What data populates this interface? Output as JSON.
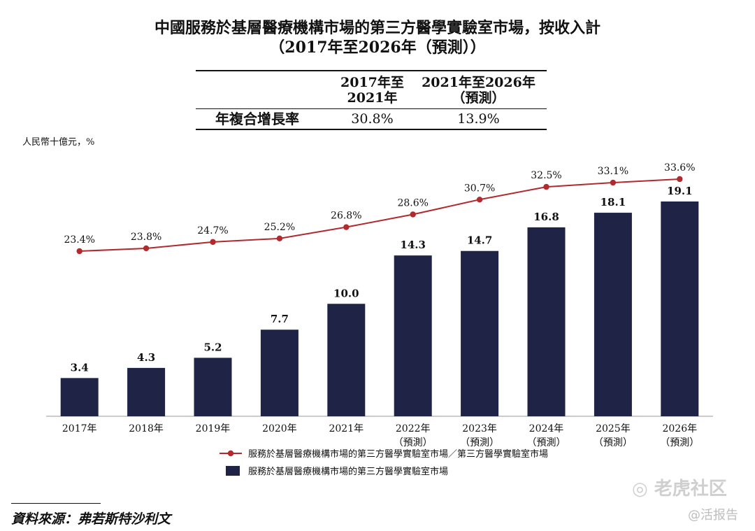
{
  "title_line1": "中國服務於基層醫療機構市場的第三方醫學實驗室市場，按收入計",
  "title_line2": "（2017年至2026年（預測））",
  "cagr_table": {
    "header_col1_line1": "2017年至",
    "header_col1_line2": "2021年",
    "header_col2_line1": "2021年至2026年",
    "header_col2_line2": "（預測）",
    "row_label": "年複合增長率",
    "value1": "30.8%",
    "value2": "13.9%"
  },
  "unit_label": "人民幣十億元，%",
  "chart_data": {
    "type": "bar",
    "categories": [
      "2017年",
      "2018年",
      "2019年",
      "2020年",
      "2021年",
      "2022年",
      "2023年",
      "2024年",
      "2025年",
      "2026年"
    ],
    "category_sublabels": [
      "",
      "",
      "",
      "",
      "",
      "（預測）",
      "（預測）",
      "（預測）",
      "（預測）",
      "（預測）"
    ],
    "series": [
      {
        "name": "服務於基層醫療機構市場的第三方醫學實驗室市場",
        "kind": "bar",
        "color": "#1f2346",
        "values": [
          3.4,
          4.3,
          5.2,
          7.7,
          10.0,
          14.3,
          14.7,
          16.8,
          18.1,
          19.1
        ],
        "labels": [
          "3.4",
          "4.3",
          "5.2",
          "7.7",
          "10.0",
          "14.3",
          "14.7",
          "16.8",
          "18.1",
          "19.1"
        ]
      },
      {
        "name": "服務於基層醫療機構市場的第三方醫學實驗室市場／第三方醫學實驗室市場",
        "kind": "line",
        "color": "#b22a2e",
        "values": [
          23.4,
          23.8,
          24.7,
          25.2,
          26.8,
          28.6,
          30.7,
          32.5,
          33.1,
          33.6
        ],
        "labels": [
          "23.4%",
          "23.8%",
          "24.7%",
          "25.2%",
          "26.8%",
          "28.6%",
          "30.7%",
          "32.5%",
          "33.1%",
          "33.6%"
        ]
      }
    ],
    "bar_ylim": [
      0,
      20
    ],
    "line_ylim": [
      0,
      36
    ],
    "legend_position": "bottom-center"
  },
  "source": "資料來源：弗若斯特沙利文",
  "watermark": "老虎社区",
  "watermark_sub": "@活报告"
}
